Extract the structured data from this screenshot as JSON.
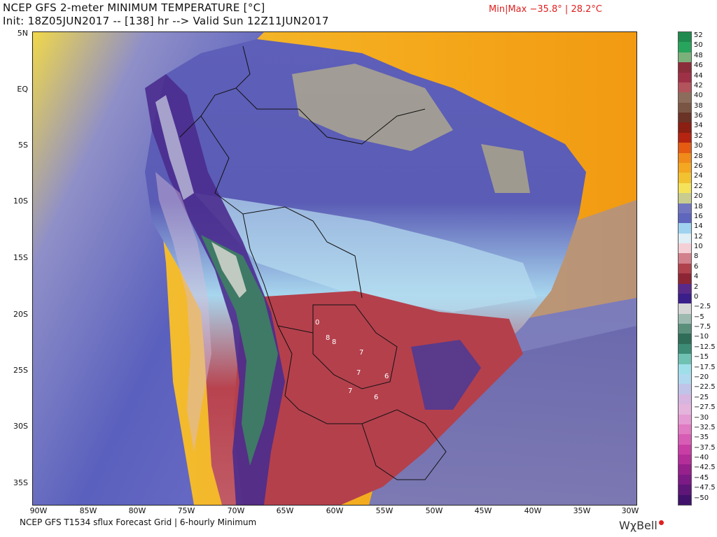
{
  "header": {
    "title_line1": "NCEP GFS 2-meter MINIMUM TEMPERATURE [°C]",
    "title_line2": "Init: 18Z05JUN2017 -- [138] hr --> Valid Sun 12Z11JUN2017",
    "minmax": "Min|Max −35.8° | 28.2°C"
  },
  "map": {
    "lat_labels": [
      "5N",
      "EQ",
      "5S",
      "10S",
      "15S",
      "20S",
      "25S",
      "30S",
      "35S"
    ],
    "lon_labels": [
      "90W",
      "85W",
      "80W",
      "75W",
      "70W",
      "65W",
      "60W",
      "55W",
      "50W",
      "45W",
      "40W",
      "35W",
      "30W"
    ],
    "value_labels": [
      "0",
      "8",
      "8",
      "7",
      "7",
      "6",
      "7",
      "6"
    ],
    "colors": {
      "ocean_warm": "#f2a11e",
      "ocean_yellow": "#f0dc4a",
      "ocean_blue": "#5d5fc0",
      "land_purple": "#4c3a9a",
      "land_cool": "#b9dcef",
      "land_warm": "#b23a45",
      "andes_teal": "#3d7a66",
      "andes_white": "#d8d8d0"
    }
  },
  "colorbar": {
    "labels": [
      "52",
      "50",
      "48",
      "46",
      "44",
      "42",
      "40",
      "38",
      "36",
      "34",
      "32",
      "30",
      "28",
      "26",
      "24",
      "22",
      "20",
      "18",
      "16",
      "14",
      "12",
      "10",
      "8",
      "6",
      "4",
      "2",
      "0",
      "−2.5",
      "−5",
      "−7.5",
      "−10",
      "−12.5",
      "−15",
      "−17.5",
      "−20",
      "−22.5",
      "−25",
      "−27.5",
      "−30",
      "−32.5",
      "−35",
      "−37.5",
      "−40",
      "−42.5",
      "−45",
      "−47.5",
      "−50"
    ],
    "colors": [
      "#1f8a4d",
      "#27a55c",
      "#7ab07a",
      "#8c2d3a",
      "#9f3147",
      "#b3535c",
      "#8c6c5a",
      "#7a5544",
      "#6a3326",
      "#8a1f12",
      "#b52410",
      "#e55b12",
      "#f08a18",
      "#f4a720",
      "#f2c230",
      "#f4e35a",
      "#c8cc8e",
      "#7276c0",
      "#5e66bd",
      "#9fd3ef",
      "#e0eef6",
      "#f4d0d6",
      "#d2808b",
      "#b0424c",
      "#8e2535",
      "#5a2a8a",
      "#3a1e8a",
      "#d6d6d6",
      "#9cbab0",
      "#5a8f7c",
      "#2f6d58",
      "#3c8c76",
      "#6fc1b2",
      "#9fdfea",
      "#b0d8ef",
      "#bfc4e8",
      "#d6b6e0",
      "#e4b4dc",
      "#e49ad2",
      "#e07ac2",
      "#d75cb4",
      "#c83ea5",
      "#b42e9a",
      "#96208c",
      "#7c1a86",
      "#5e1679",
      "#40126c"
    ]
  },
  "footer": {
    "source": "NCEP GFS T1534 sflux Forecast Grid | 6-hourly Minimum",
    "brand": "WχBell"
  }
}
